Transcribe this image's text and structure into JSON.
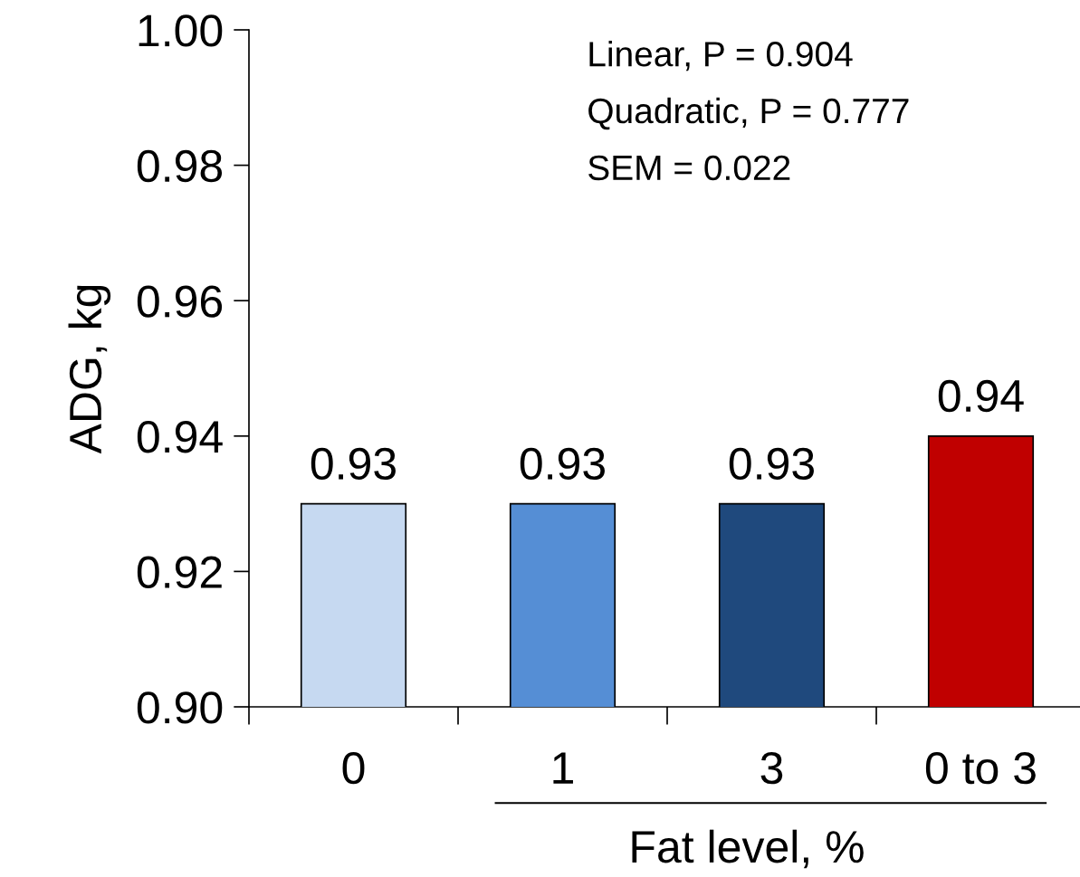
{
  "chart_data": {
    "type": "bar",
    "ylabel": "ADG, kg",
    "xlabel": "Fat level, %",
    "categories": [
      "0",
      "1",
      "3",
      "0 to 3"
    ],
    "values": [
      0.93,
      0.93,
      0.93,
      0.94
    ],
    "colors": [
      "#c6d9f1",
      "#558ed5",
      "#1f497d",
      "#c00000"
    ],
    "ylim": [
      0.9,
      1.0
    ],
    "yticks": [
      {
        "value": 0.9,
        "label": "0.90"
      },
      {
        "value": 0.92,
        "label": "0.92"
      },
      {
        "value": 0.94,
        "label": "0.94"
      },
      {
        "value": 0.96,
        "label": "0.96"
      },
      {
        "value": 0.98,
        "label": "0.98"
      },
      {
        "value": 1.0,
        "label": "1.00"
      }
    ],
    "data_labels": true,
    "grid": false,
    "legend": false,
    "annotations": [
      "Linear, P = 0.904",
      "Quadratic, P = 0.777",
      "SEM = 0.022"
    ]
  }
}
